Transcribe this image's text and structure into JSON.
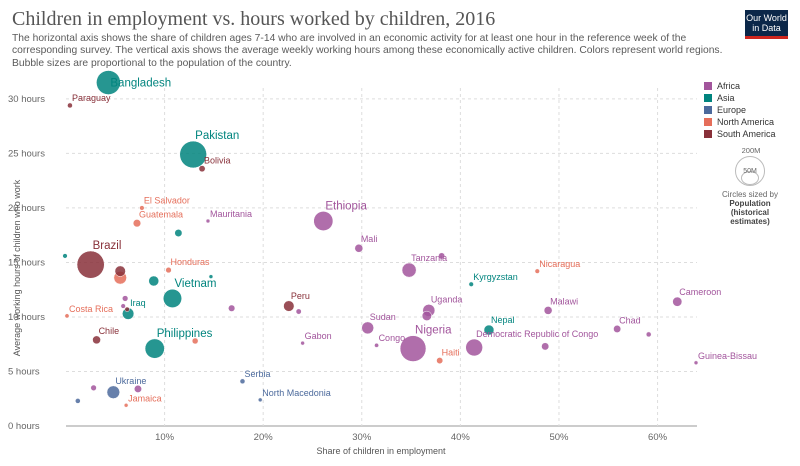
{
  "header": {
    "title": "Children in employment vs. hours worked by children, 2016",
    "subtitle": "The horizontal axis shows the share of children ages 7-14 who are involved in an economic activity for at least one hour in the reference week of the corresponding survey. The vertical axis shows the average weekly working hours among these economically active children. Colors represent world regions. Bubble sizes are proportional to the population of the country.",
    "logo_line1": "Our World",
    "logo_line2": "in Data"
  },
  "legend": {
    "regions": [
      {
        "name": "Africa",
        "color": "#a2559c"
      },
      {
        "name": "Asia",
        "color": "#00847e"
      },
      {
        "name": "Europe",
        "color": "#4c6a9c"
      },
      {
        "name": "North America",
        "color": "#e56e5a"
      },
      {
        "name": "South America",
        "color": "#883039"
      }
    ],
    "size_max_label": "200M",
    "size_min_label": "50M",
    "size_caption": "Circles sized by",
    "size_caption_bold": "Population (historical estimates)"
  },
  "chart_data": {
    "type": "scatter",
    "xlabel": "Share of children in employment",
    "ylabel": "Average working hours of children who work",
    "xlim": [
      0,
      64
    ],
    "ylim": [
      0,
      31
    ],
    "x_ticks": [
      {
        "v": 10,
        "label": "10%"
      },
      {
        "v": 20,
        "label": "20%"
      },
      {
        "v": 30,
        "label": "30%"
      },
      {
        "v": 40,
        "label": "40%"
      },
      {
        "v": 50,
        "label": "50%"
      },
      {
        "v": 60,
        "label": "60%"
      }
    ],
    "y_ticks": [
      {
        "v": 0,
        "label": "0 hours"
      },
      {
        "v": 5,
        "label": "5 hours"
      },
      {
        "v": 10,
        "label": "10 hours"
      },
      {
        "v": 15,
        "label": "15 hours"
      },
      {
        "v": 20,
        "label": "20 hours"
      },
      {
        "v": 25,
        "label": "25 hours"
      },
      {
        "v": 30,
        "label": "30 hours"
      }
    ],
    "grid": true,
    "points": [
      {
        "name": "Bangladesh",
        "region": "Asia",
        "x": 4.3,
        "y": 31.5,
        "pop": 160,
        "big": true
      },
      {
        "name": "Paraguay",
        "region": "South America",
        "x": 0.4,
        "y": 29.4,
        "pop": 7
      },
      {
        "name": "Pakistan",
        "region": "Asia",
        "x": 12.9,
        "y": 24.9,
        "pop": 200,
        "big": true
      },
      {
        "name": "Bolivia",
        "region": "South America",
        "x": 13.8,
        "y": 23.6,
        "pop": 11
      },
      {
        "name": "El Salvador",
        "region": "North America",
        "x": 7.7,
        "y": 20.0,
        "pop": 6
      },
      {
        "name": "Mauritania",
        "region": "Africa",
        "x": 14.4,
        "y": 18.8,
        "pop": 4
      },
      {
        "name": "Guatemala",
        "region": "North America",
        "x": 7.2,
        "y": 18.6,
        "pop": 16
      },
      {
        "name": "Ethiopia",
        "region": "Africa",
        "x": 26.1,
        "y": 18.8,
        "pop": 103,
        "big": true
      },
      {
        "name": "Mali",
        "region": "Africa",
        "x": 29.7,
        "y": 16.3,
        "pop": 18
      },
      {
        "name": "Brazil",
        "region": "South America",
        "x": 2.5,
        "y": 14.8,
        "pop": 206,
        "big": true
      },
      {
        "name": "Tanzania",
        "region": "Africa",
        "x": 34.8,
        "y": 14.3,
        "pop": 56
      },
      {
        "name": "Honduras",
        "region": "North America",
        "x": 10.4,
        "y": 14.3,
        "pop": 9
      },
      {
        "name": "Nicaragua",
        "region": "North America",
        "x": 47.8,
        "y": 14.2,
        "pop": 6
      },
      {
        "name": "Vietnam",
        "region": "Asia",
        "x": 10.8,
        "y": 11.7,
        "pop": 94,
        "big": true
      },
      {
        "name": "Kyrgyzstan",
        "region": "Asia",
        "x": 41.1,
        "y": 13.0,
        "pop": 6
      },
      {
        "name": "Cameroon",
        "region": "Africa",
        "x": 62.0,
        "y": 11.4,
        "pop": 24
      },
      {
        "name": "Peru",
        "region": "South America",
        "x": 22.6,
        "y": 11.0,
        "pop": 31
      },
      {
        "name": "Uganda",
        "region": "Africa",
        "x": 36.8,
        "y": 10.6,
        "pop": 41
      },
      {
        "name": "Malawi",
        "region": "Africa",
        "x": 48.9,
        "y": 10.6,
        "pop": 18
      },
      {
        "name": "Costa Rica",
        "region": "North America",
        "x": 0.1,
        "y": 10.1,
        "pop": 5
      },
      {
        "name": "Iraq",
        "region": "Asia",
        "x": 6.3,
        "y": 10.3,
        "pop": 37
      },
      {
        "name": "Sudan",
        "region": "Africa",
        "x": 30.6,
        "y": 9.0,
        "pop": 40
      },
      {
        "name": "Chad",
        "region": "Africa",
        "x": 55.9,
        "y": 8.9,
        "pop": 15
      },
      {
        "name": "Nepal",
        "region": "Asia",
        "x": 42.9,
        "y": 8.8,
        "pop": 28
      },
      {
        "name": "Chile",
        "region": "South America",
        "x": 3.1,
        "y": 7.9,
        "pop": 18
      },
      {
        "name": "Gabon",
        "region": "Africa",
        "x": 24.0,
        "y": 7.6,
        "pop": 2
      },
      {
        "name": "Congo",
        "region": "Africa",
        "x": 31.5,
        "y": 7.4,
        "pop": 5
      },
      {
        "name": "Nigeria",
        "region": "Africa",
        "x": 35.2,
        "y": 7.1,
        "pop": 186,
        "big": true
      },
      {
        "name": "Democratic Republic of Congo",
        "region": "Africa",
        "x": 41.4,
        "y": 7.2,
        "pop": 79
      },
      {
        "name": "Philippines",
        "region": "Asia",
        "x": 9.0,
        "y": 7.1,
        "pop": 104,
        "big": true
      },
      {
        "name": "Haiti",
        "region": "North America",
        "x": 37.9,
        "y": 6.0,
        "pop": 11
      },
      {
        "name": "Guinea-Bissau",
        "region": "Africa",
        "x": 63.9,
        "y": 5.8,
        "pop": 2
      },
      {
        "name": "Serbia",
        "region": "Europe",
        "x": 17.9,
        "y": 4.1,
        "pop": 7
      },
      {
        "name": "Ukraine",
        "region": "Europe",
        "x": 4.8,
        "y": 3.1,
        "pop": 45
      },
      {
        "name": "North Macedonia",
        "region": "Europe",
        "x": 19.7,
        "y": 2.4,
        "pop": 2
      },
      {
        "name": "Jamaica",
        "region": "North America",
        "x": 6.1,
        "y": 1.9,
        "pop": 3
      }
    ],
    "unlabeled_points": [
      {
        "region": "Asia",
        "x": -0.1,
        "y": 15.6,
        "pop": 6
      },
      {
        "region": "Asia",
        "x": 11.4,
        "y": 17.7,
        "pop": 15
      },
      {
        "region": "Asia",
        "x": 8.9,
        "y": 13.3,
        "pop": 28
      },
      {
        "region": "Asia",
        "x": 14.7,
        "y": 13.7,
        "pop": 3
      },
      {
        "region": "Africa",
        "x": 38.1,
        "y": 15.6,
        "pop": 11
      },
      {
        "region": "Africa",
        "x": 36.6,
        "y": 10.1,
        "pop": 25
      },
      {
        "region": "Africa",
        "x": 16.8,
        "y": 10.8,
        "pop": 12
      },
      {
        "region": "Africa",
        "x": 23.6,
        "y": 10.5,
        "pop": 8
      },
      {
        "region": "Africa",
        "x": 48.6,
        "y": 7.3,
        "pop": 15
      },
      {
        "region": "Africa",
        "x": 59.1,
        "y": 8.4,
        "pop": 7
      },
      {
        "region": "Africa",
        "x": 6.0,
        "y": 11.7,
        "pop": 9
      },
      {
        "region": "Africa",
        "x": 5.8,
        "y": 11.0,
        "pop": 6
      },
      {
        "region": "Africa",
        "x": 2.8,
        "y": 3.5,
        "pop": 9
      },
      {
        "region": "Africa",
        "x": 7.3,
        "y": 3.4,
        "pop": 15
      },
      {
        "region": "South America",
        "x": 5.5,
        "y": 14.2,
        "pop": 31
      },
      {
        "region": "South America",
        "x": 6.2,
        "y": 10.7,
        "pop": 6
      },
      {
        "region": "North America",
        "x": 13.1,
        "y": 7.8,
        "pop": 10
      },
      {
        "region": "North America",
        "x": 5.5,
        "y": 13.6,
        "pop": 45
      },
      {
        "region": "Europe",
        "x": 1.2,
        "y": 2.3,
        "pop": 7
      }
    ]
  }
}
